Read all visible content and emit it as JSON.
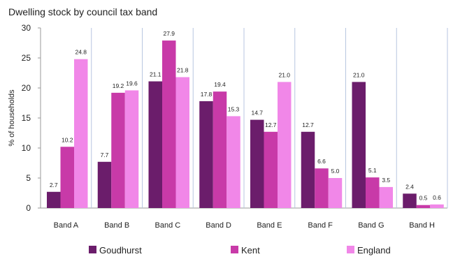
{
  "chart_data": {
    "type": "bar",
    "title": "Dwelling stock by council tax band",
    "ylabel": "% of households",
    "xlabel": "",
    "ylim": [
      0,
      30
    ],
    "yticks": [
      0,
      5,
      10,
      15,
      20,
      25,
      30
    ],
    "grid": "vertical category separators",
    "legend_position": "bottom",
    "categories": [
      "Band A",
      "Band B",
      "Band C",
      "Band D",
      "Band E",
      "Band F",
      "Band G",
      "Band H"
    ],
    "series": [
      {
        "name": "Goudhurst",
        "color": "#6b1d6b",
        "values": [
          2.7,
          7.7,
          21.1,
          17.8,
          14.7,
          12.7,
          21.0,
          2.4
        ]
      },
      {
        "name": "Kent",
        "color": "#c83aa8",
        "values": [
          10.2,
          19.2,
          27.9,
          19.4,
          12.7,
          6.6,
          5.1,
          0.5
        ]
      },
      {
        "name": "England",
        "color": "#f187e8",
        "values": [
          24.8,
          19.6,
          21.8,
          15.3,
          21.0,
          5.0,
          3.5,
          0.6
        ]
      }
    ]
  }
}
